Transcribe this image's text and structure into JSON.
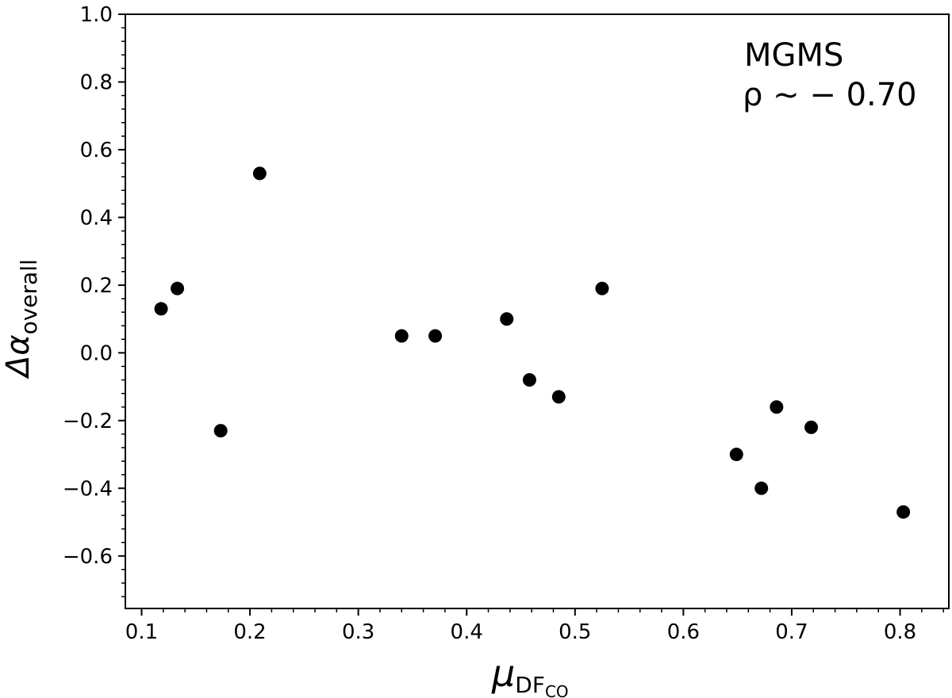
{
  "chart_data": {
    "type": "scatter",
    "xlabel": {
      "main": "μ",
      "sub": "DF",
      "subsub": "CO"
    },
    "ylabel": {
      "main": "Δα",
      "sub": "overall"
    },
    "xlim": [
      0.085,
      0.845
    ],
    "ylim": [
      -0.755,
      1.0
    ],
    "xticks": [
      0.1,
      0.2,
      0.3,
      0.4,
      0.5,
      0.6,
      0.7,
      0.8
    ],
    "xtick_labels": [
      "0.1",
      "0.2",
      "0.3",
      "0.4",
      "0.5",
      "0.6",
      "0.7",
      "0.8"
    ],
    "yticks": [
      -0.6,
      -0.4,
      -0.2,
      0.0,
      0.2,
      0.4,
      0.6,
      0.8,
      1.0
    ],
    "ytick_labels": [
      "−0.6",
      "−0.4",
      "−0.2",
      "0.0",
      "0.2",
      "0.4",
      "0.6",
      "0.8",
      "1.0"
    ],
    "grid": false,
    "marker_color": "#000000",
    "annotation": {
      "line1": "MGMS",
      "line2": "ρ ~ − 0.70"
    },
    "points": [
      {
        "x": 0.118,
        "y": 0.13
      },
      {
        "x": 0.133,
        "y": 0.19
      },
      {
        "x": 0.173,
        "y": -0.23
      },
      {
        "x": 0.209,
        "y": 0.53
      },
      {
        "x": 0.34,
        "y": 0.05
      },
      {
        "x": 0.371,
        "y": 0.05
      },
      {
        "x": 0.437,
        "y": 0.1
      },
      {
        "x": 0.458,
        "y": -0.08
      },
      {
        "x": 0.485,
        "y": -0.13
      },
      {
        "x": 0.525,
        "y": 0.19
      },
      {
        "x": 0.649,
        "y": -0.3
      },
      {
        "x": 0.672,
        "y": -0.4
      },
      {
        "x": 0.686,
        "y": -0.16
      },
      {
        "x": 0.718,
        "y": -0.22
      },
      {
        "x": 0.803,
        "y": -0.47
      }
    ]
  }
}
